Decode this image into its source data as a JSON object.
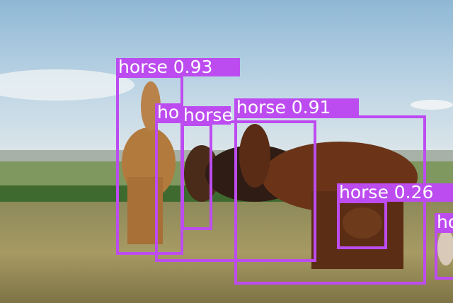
{
  "detections": [
    {
      "label": "horse 0.93"
    },
    {
      "label": "ho"
    },
    {
      "label": "horse"
    },
    {
      "label": "horse 0.91"
    },
    {
      "label": "horse 0.26"
    },
    {
      "label": "ho"
    }
  ]
}
